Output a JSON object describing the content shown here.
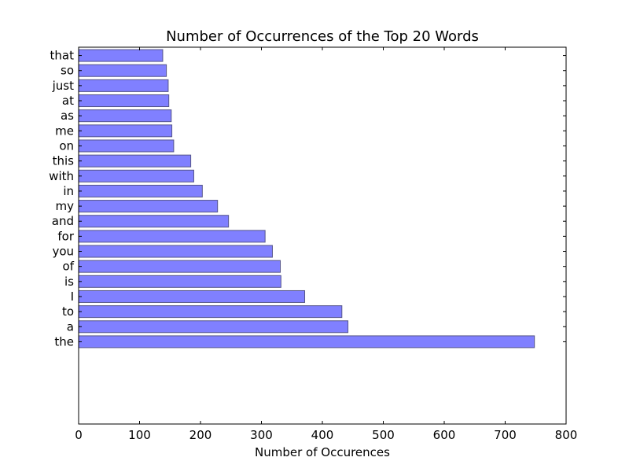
{
  "chart_data": {
    "type": "bar",
    "orientation": "horizontal",
    "title": "Number of Occurrences of the Top 20 Words",
    "xlabel": "Number of Occurences",
    "ylabel": "",
    "categories": [
      "the",
      "a",
      "to",
      "I",
      "is",
      "of",
      "you",
      "for",
      "and",
      "my",
      "in",
      "with",
      "this",
      "on",
      "me",
      "as",
      "at",
      "just",
      "so",
      "that"
    ],
    "values": [
      748,
      442,
      432,
      371,
      332,
      331,
      318,
      306,
      246,
      228,
      203,
      189,
      184,
      156,
      153,
      152,
      148,
      147,
      144,
      138
    ],
    "xlim": [
      0,
      800
    ],
    "xticks": [
      0,
      100,
      200,
      300,
      400,
      500,
      600,
      700,
      800
    ],
    "grid": false,
    "colors": {
      "bar_fill": "#8080ff",
      "bar_edge": "#55558a",
      "axis": "#000000",
      "background": "#ffffff"
    }
  }
}
